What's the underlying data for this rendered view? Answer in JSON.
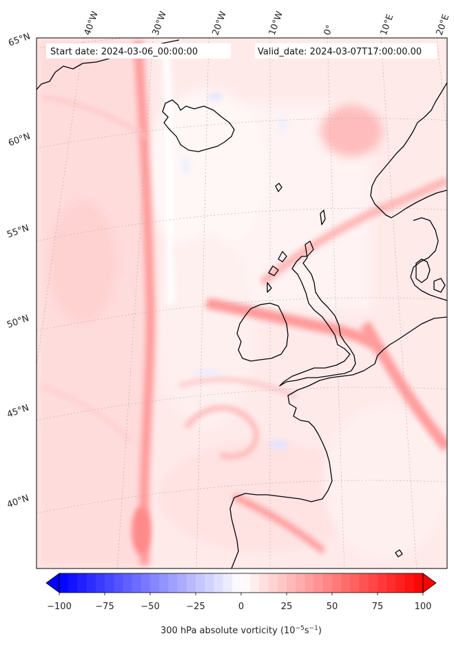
{
  "map": {
    "start_label": "Start date: 2024-03-06_00:00:00",
    "valid_label": "Valid_date: 2024-03-07T17:00:00.00",
    "lon_labels": [
      "40°W",
      "30°W",
      "20°W",
      "10°W",
      "0°",
      "10°E",
      "20°E"
    ],
    "lat_labels": [
      "65°N",
      "60°N",
      "55°N",
      "50°N",
      "45°N",
      "40°N"
    ],
    "colors": {
      "background": "#ffefef",
      "coast": "#000000",
      "grid": "#9a9a9a",
      "blue_extreme": "#0000ff",
      "white_mid": "#ffffff",
      "red_extreme": "#ff0000"
    }
  },
  "colorbar": {
    "ticks": [
      "−100",
      "−75",
      "−50",
      "−25",
      "0",
      "25",
      "50",
      "75",
      "100"
    ],
    "label": "300 hPa absolute vorticity (10",
    "label_exp1": "−5",
    "label_mid": "s",
    "label_exp2": "−1",
    "label_end": ")",
    "vmin": -100,
    "vmax": 100
  }
}
